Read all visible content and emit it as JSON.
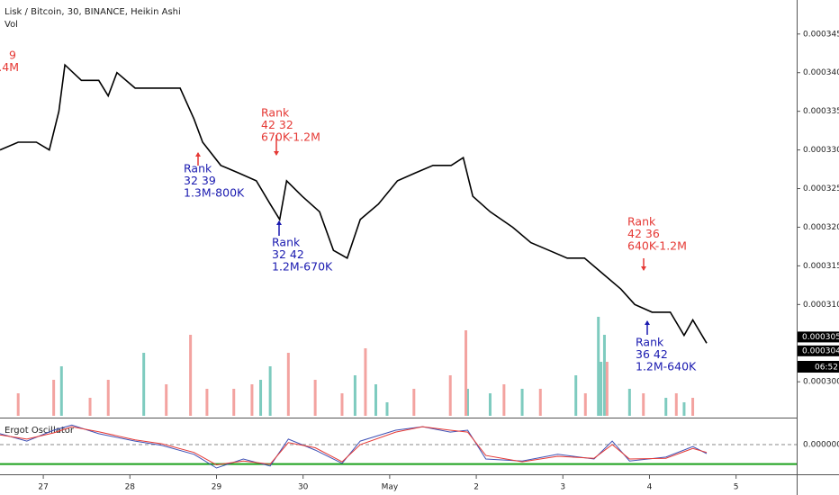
{
  "header": {
    "symbol": "Lisk / Bitcoin, 30, BINANCE, Heikin Ashi",
    "volume_label": "Vol"
  },
  "x_axis": {
    "xlim": [
      -0.5,
      8.7
    ],
    "xticks": [
      {
        "value": 0,
        "label": "27"
      },
      {
        "value": 1,
        "label": "28"
      },
      {
        "value": 2,
        "label": "29"
      },
      {
        "value": 3,
        "label": "30"
      },
      {
        "value": 4,
        "label": "May"
      },
      {
        "value": 5,
        "label": "2"
      },
      {
        "value": 6,
        "label": "3"
      },
      {
        "value": 7,
        "label": "4"
      },
      {
        "value": 8,
        "label": "5"
      }
    ]
  },
  "price_chart": {
    "type": "line",
    "color": "#000000",
    "ylim": [
      0.0002956,
      0.0003494
    ],
    "yticks": [
      {
        "value": 0.000345,
        "label": "0.0003450"
      },
      {
        "value": 0.00034,
        "label": "0.0003400"
      },
      {
        "value": 0.000335,
        "label": "0.0003350"
      },
      {
        "value": 0.00033,
        "label": "0.0003300"
      },
      {
        "value": 0.000325,
        "label": "0.0003250"
      },
      {
        "value": 0.00032,
        "label": "0.0003200"
      },
      {
        "value": 0.000315,
        "label": "0.0003150"
      },
      {
        "value": 0.00031,
        "label": "0.0003100"
      },
      {
        "value": 0.0003,
        "label": "0.0003000"
      }
    ],
    "x": [
      -0.5,
      -0.29,
      -0.08,
      0.07,
      0.18,
      0.25,
      0.44,
      0.64,
      0.75,
      0.85,
      1.06,
      1.32,
      1.58,
      1.74,
      1.84,
      2.05,
      2.26,
      2.46,
      2.62,
      2.73,
      2.81,
      2.99,
      3.19,
      3.35,
      3.51,
      3.66,
      3.87,
      4.09,
      4.29,
      4.5,
      4.71,
      4.85,
      4.96,
      5.16,
      5.42,
      5.63,
      5.84,
      6.05,
      6.25,
      6.46,
      6.67,
      6.83,
      7.03,
      7.24,
      7.4,
      7.5,
      7.66
    ],
    "values": [
      0.00033,
      0.000331,
      0.000331,
      0.00033,
      0.000335,
      0.000341,
      0.000339,
      0.000339,
      0.000337,
      0.00034,
      0.000338,
      0.000338,
      0.000338,
      0.000334,
      0.000331,
      0.000328,
      0.000327,
      0.000326,
      0.000323,
      0.000321,
      0.000326,
      0.000324,
      0.000322,
      0.000317,
      0.000316,
      0.000321,
      0.000323,
      0.000326,
      0.000327,
      0.000328,
      0.000328,
      0.000329,
      0.000324,
      0.000322,
      0.00032,
      0.000318,
      0.000317,
      0.000316,
      0.000316,
      0.000314,
      0.000312,
      0.00031,
      0.000309,
      0.000309,
      0.000306,
      0.000308,
      0.000305
    ],
    "last_labels": [
      {
        "value": 0.0003051,
        "label": "0.0003051"
      },
      {
        "value": 0.0003047,
        "label": "0.0003047"
      }
    ],
    "countdown": "06:52"
  },
  "volume": {
    "series": [
      {
        "color": "#7ecbbf",
        "x": [
          0.21,
          1.16,
          2.51,
          2.62,
          3.6,
          3.84,
          3.97,
          4.9,
          5.16,
          5.53,
          6.15,
          6.41,
          6.44,
          6.48,
          6.77,
          7.19,
          7.4
        ],
        "values": [
          55,
          70,
          40,
          55,
          45,
          35,
          15,
          30,
          25,
          30,
          45,
          110,
          60,
          90,
          30,
          20,
          15
        ]
      },
      {
        "color": "#f3a3a0",
        "x": [
          -0.29,
          0.12,
          0.54,
          0.75,
          1.42,
          1.7,
          1.89,
          2.2,
          2.41,
          2.83,
          3.14,
          3.45,
          3.72,
          4.28,
          4.7,
          4.88,
          5.32,
          5.74,
          6.26,
          6.51,
          6.93,
          7.31,
          7.5
        ],
        "values": [
          25,
          40,
          20,
          40,
          35,
          90,
          30,
          30,
          35,
          70,
          40,
          25,
          75,
          30,
          45,
          95,
          35,
          30,
          25,
          60,
          25,
          25,
          20
        ]
      }
    ]
  },
  "annotations": [
    {
      "lines": [
        "9",
        ".4M"
      ],
      "color": "#e53935"
    },
    {
      "lines": [
        "Rank",
        "42 32",
        "670K-1.2M"
      ],
      "color": "#e53935",
      "arrow": "down",
      "arrow_color": "#e53935"
    },
    {
      "lines": [
        "Rank",
        "32 39",
        "1.3M-800K"
      ],
      "color": "#1a1ab0",
      "arrow": "up",
      "arrow_color": "#e53935"
    },
    {
      "lines": [
        "Rank",
        "32 42",
        "1.2M-670K"
      ],
      "color": "#1a1ab0",
      "arrow": "up",
      "arrow_color": "#1a1ab0"
    },
    {
      "lines": [
        "Rank",
        "42 36",
        "640K-1.2M"
      ],
      "color": "#e53935",
      "arrow": "down",
      "arrow_color": "#e53935"
    },
    {
      "lines": [
        "Rank",
        "36 42",
        "1.2M-640K"
      ],
      "color": "#1a1ab0",
      "arrow": "up",
      "arrow_color": "#1a1ab0"
    }
  ],
  "oscillator": {
    "type": "line",
    "title": "Ergot Oscillator",
    "ylim": [
      -0.6,
      0.6
    ],
    "yticks": [
      {
        "value": 0,
        "label": "0.0000000"
      }
    ],
    "level": -0.5,
    "level_color": "#1aa01a",
    "x": [
      -0.5,
      -0.19,
      0.12,
      0.33,
      0.64,
      1.06,
      1.37,
      1.74,
      2.0,
      2.31,
      2.62,
      2.83,
      3.14,
      3.45,
      3.66,
      4.07,
      4.38,
      4.7,
      4.9,
      5.11,
      5.53,
      5.94,
      6.36,
      6.57,
      6.77,
      7.19,
      7.5,
      7.66
    ],
    "series": [
      {
        "color": "#3f51b5",
        "values": [
          0.28,
          0.09,
          0.37,
          0.5,
          0.28,
          0.09,
          -0.02,
          -0.25,
          -0.6,
          -0.37,
          -0.55,
          0.14,
          -0.14,
          -0.48,
          0.09,
          0.37,
          0.46,
          0.32,
          0.37,
          -0.37,
          -0.42,
          -0.25,
          -0.37,
          0.09,
          -0.42,
          -0.32,
          -0.05,
          -0.23
        ]
      },
      {
        "color": "#e53935",
        "values": [
          0.25,
          0.14,
          0.3,
          0.46,
          0.33,
          0.12,
          0.02,
          -0.2,
          -0.52,
          -0.42,
          -0.5,
          0.05,
          -0.08,
          -0.44,
          0.0,
          0.32,
          0.46,
          0.37,
          0.32,
          -0.28,
          -0.44,
          -0.3,
          -0.35,
          0.0,
          -0.37,
          -0.35,
          -0.1,
          -0.2
        ]
      }
    ]
  }
}
